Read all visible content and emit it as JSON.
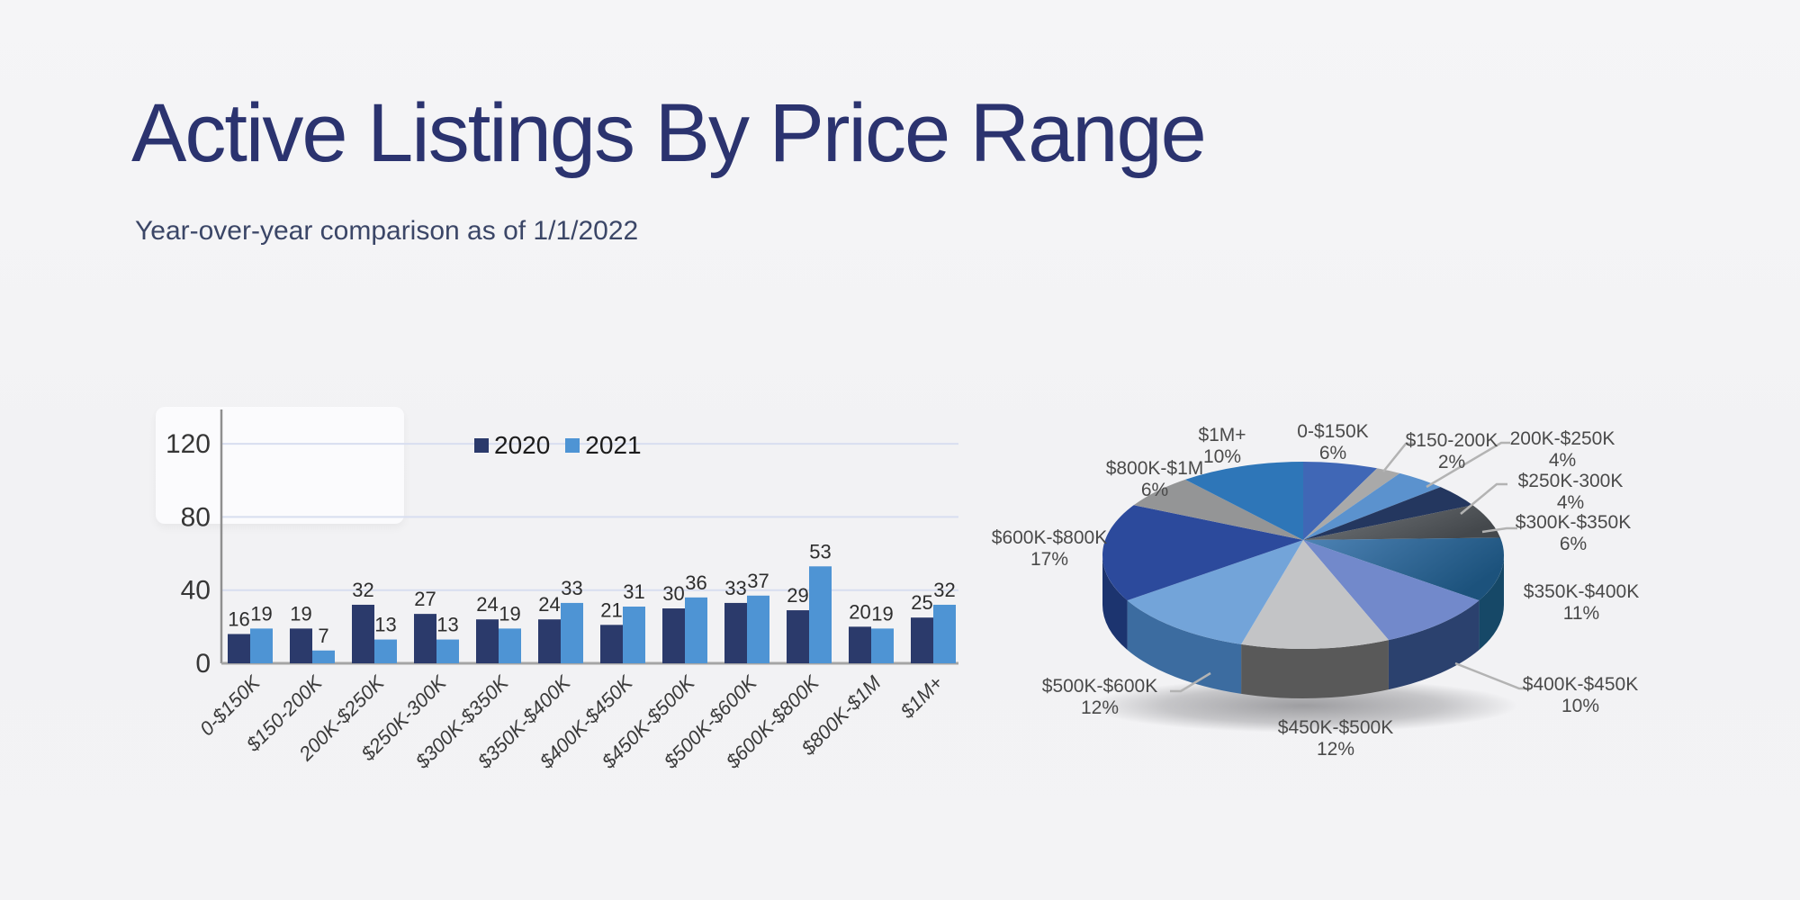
{
  "header": {
    "title": "Active Listings By Price Range",
    "subtitle": "Year-over-year comparison as of 1/1/2022"
  },
  "colors": {
    "background": "#F3F3F5",
    "title": "#2B336F",
    "subtitle": "#3B4667",
    "gridline": "#D8DEF0",
    "axis_vertical": "#8F8F8F",
    "axis_baseline": "#A5A5A5",
    "tick_label": "#363636",
    "value_label": "#2D2D2D",
    "category_label": "#3A3A3A",
    "legend_text": "#1C1C1C",
    "pie_label": "#4A4A4A",
    "leader_line": "#B3B3B3"
  },
  "chart_data": [
    {
      "type": "bar",
      "title": "",
      "categories": [
        "0-$150K",
        "$150-200K",
        "200K-$250K",
        "$250K-300K",
        "$300K-$350K",
        "$350K-$400K",
        "$400K-$450K",
        "$450K-$500K",
        "$500K-$600K",
        "$600K-$800K",
        "$800K-$1M",
        "$1M+"
      ],
      "series": [
        {
          "name": "2020",
          "color": "#2B3A6B",
          "values": [
            16,
            19,
            32,
            27,
            24,
            24,
            21,
            30,
            33,
            29,
            20,
            25
          ]
        },
        {
          "name": "2021",
          "color": "#4E94D4",
          "values": [
            19,
            7,
            13,
            13,
            19,
            33,
            31,
            36,
            37,
            53,
            19,
            32
          ]
        }
      ],
      "ylim": [
        0,
        120
      ],
      "yticks": [
        0,
        40,
        80,
        120
      ],
      "grid": true,
      "legend_position": "top-center",
      "value_labels": true
    },
    {
      "type": "pie",
      "style": "3d",
      "labels": [
        "0-$150K",
        "$150-200K",
        "200K-$250K",
        "$250K-300K",
        "$300K-$350K",
        "$350K-$400K",
        "$400K-$450K",
        "$450K-$500K",
        "$500K-$600K",
        "$600K-$800K",
        "$800K-$1M",
        "$1M+"
      ],
      "values": [
        6,
        2,
        4,
        4,
        6,
        11,
        10,
        12,
        12,
        17,
        6,
        10
      ],
      "value_suffix": "%",
      "start_angle_deg": 0,
      "direction": "clockwise",
      "slices": [
        {
          "top": "#4067B6",
          "side": "#2A4578"
        },
        {
          "top": "#A9A9A9",
          "side": "#777777"
        },
        {
          "top": "#5B92CE",
          "side": "#3B6391"
        },
        {
          "top": "#24375F",
          "side": "#16213B"
        },
        {
          "top_gradient": [
            "#75797D",
            "#44484C"
          ],
          "top": "#5E6164",
          "side": "#3F4143"
        },
        {
          "top_gradient": [
            "#4E83B5",
            "#1C527C"
          ],
          "top": "#2F618D",
          "side": "#164867"
        },
        {
          "top": "#7289CB",
          "side": "#2B416E"
        },
        {
          "top": "#C3C4C6",
          "side": "#595959"
        },
        {
          "top": "#73A4D9",
          "side": "#3C6CA0"
        },
        {
          "top": "#2C4A9C",
          "side": "#1C346F"
        },
        {
          "top": "#949596",
          "side": "#606060"
        },
        {
          "top": "#2E76B8",
          "side": "#1D4E7C"
        }
      ]
    }
  ]
}
